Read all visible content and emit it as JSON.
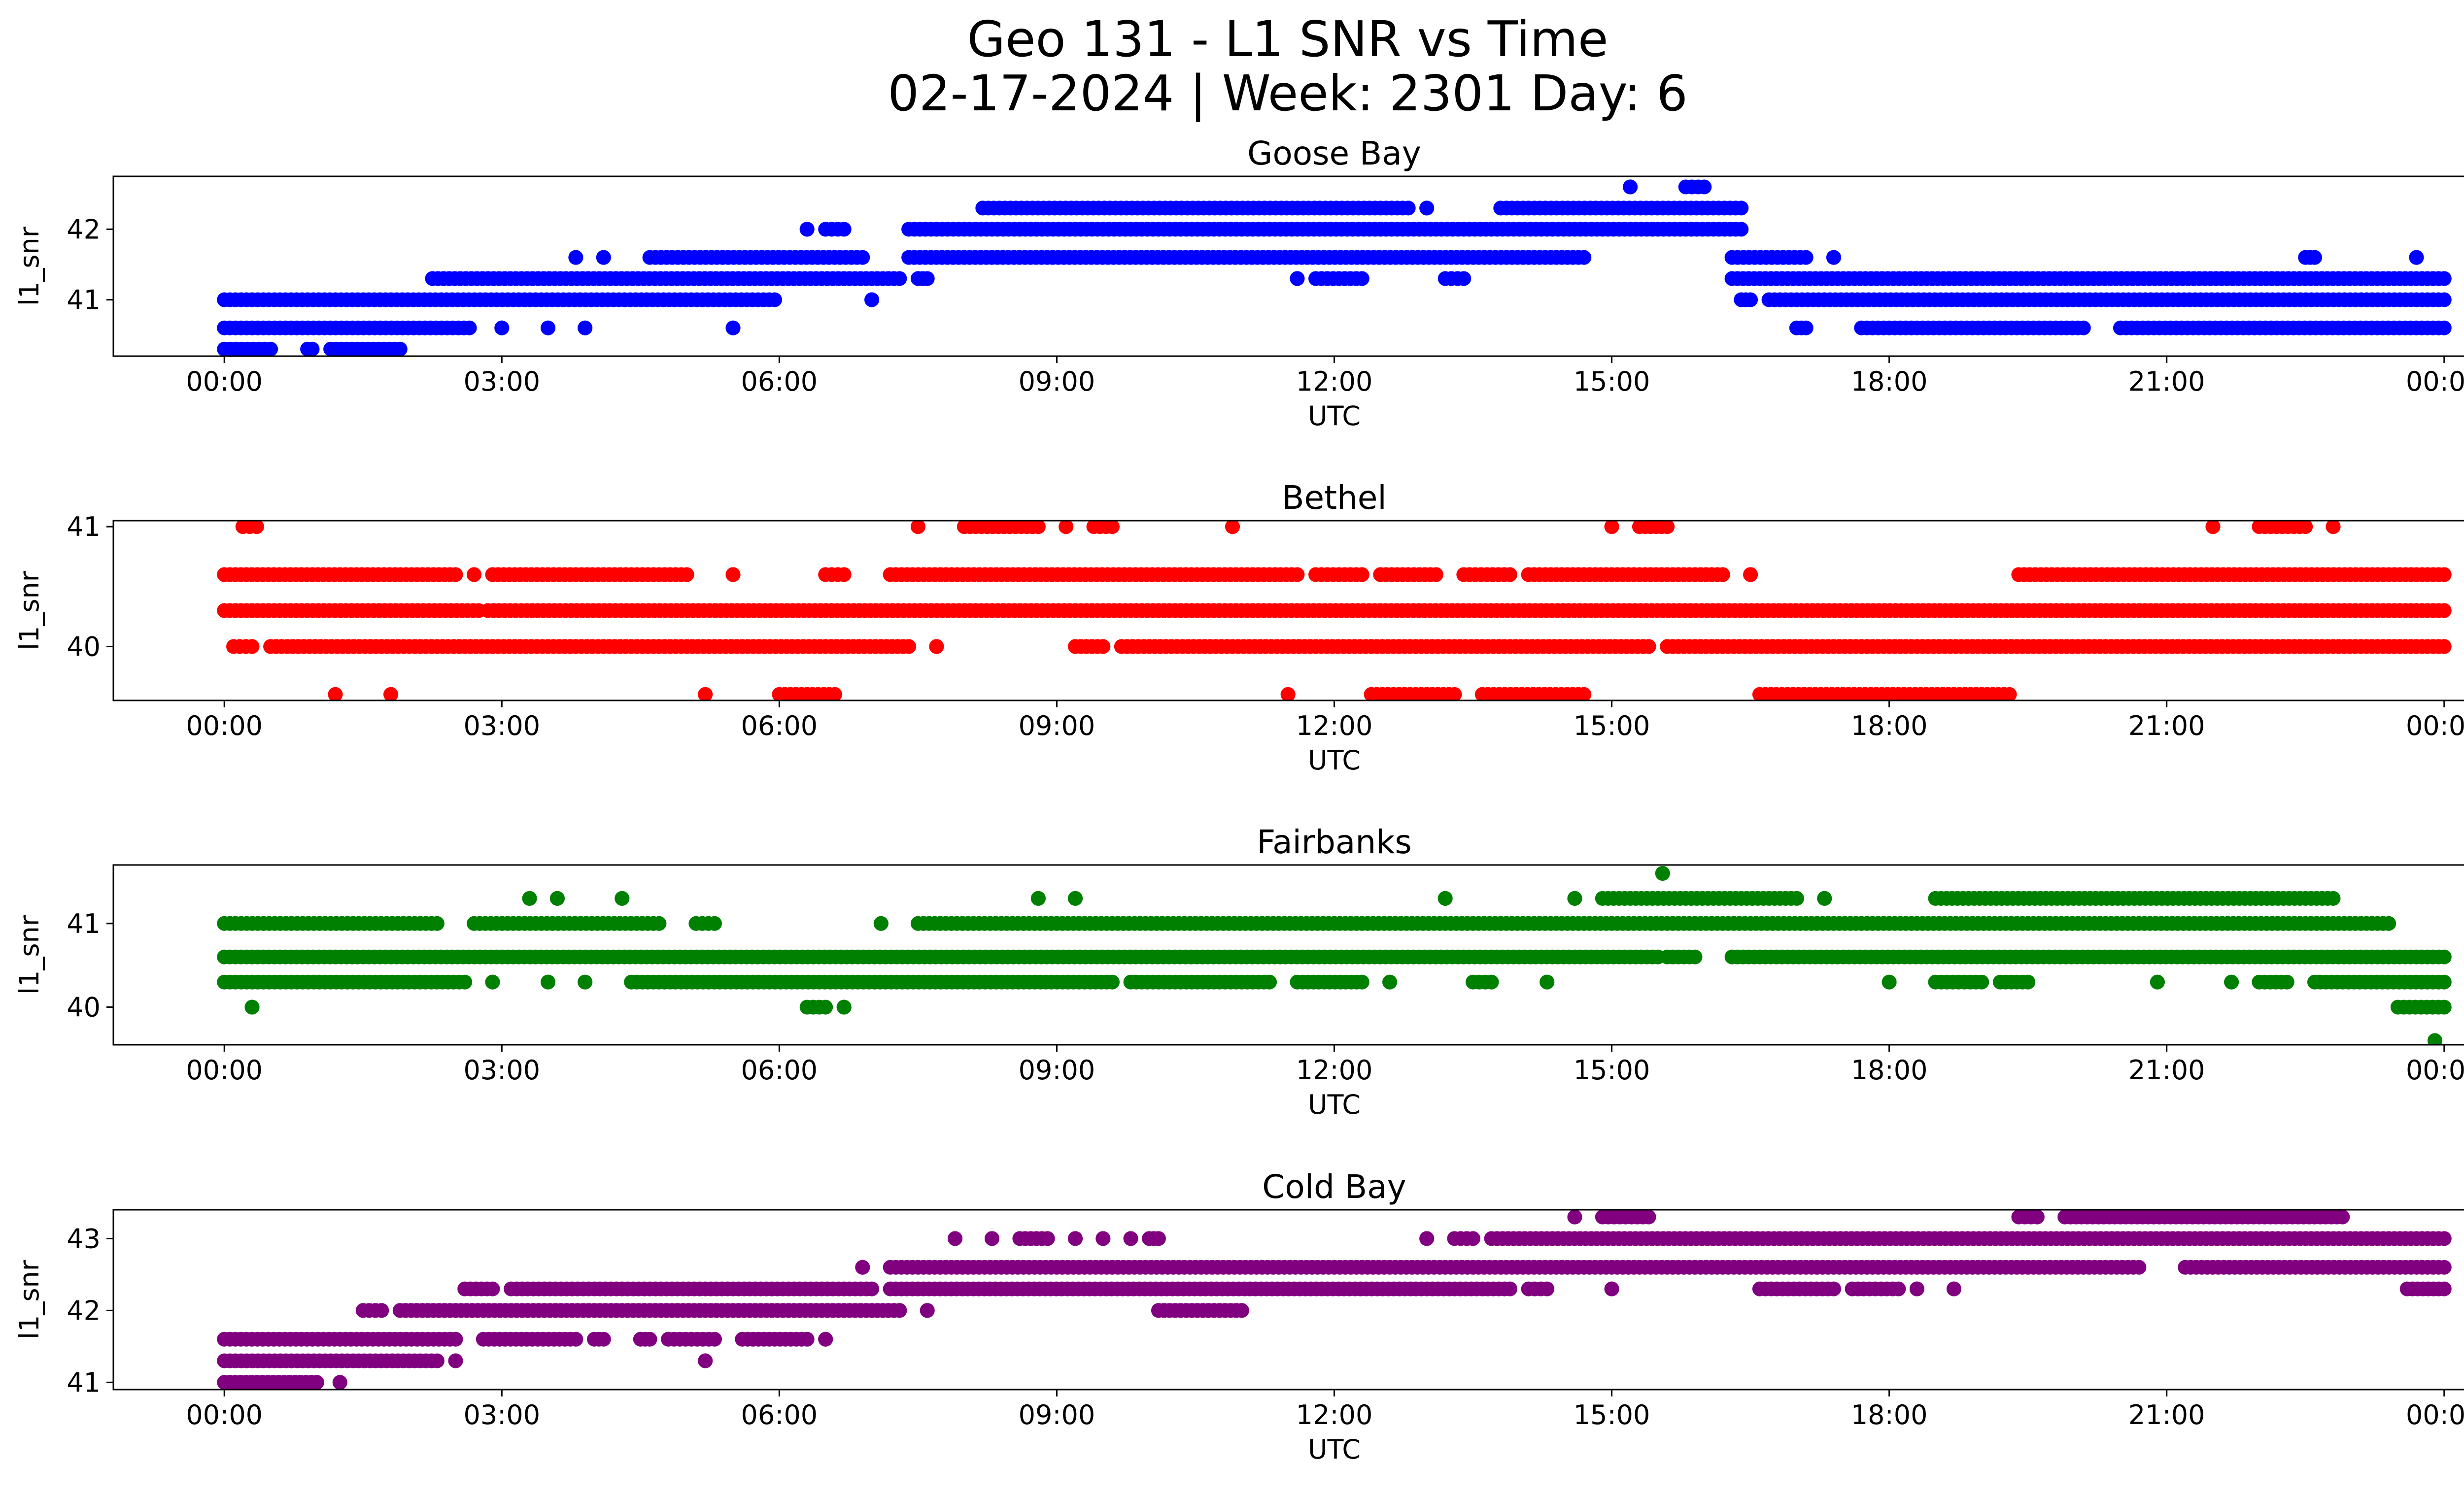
{
  "figure": {
    "title_line1": "Geo 131 - L1 SNR vs Time",
    "title_line2": "02-17-2024 | Week: 2301 Day: 6"
  },
  "chart_data": [
    {
      "type": "scatter",
      "title": "Goose Bay",
      "xlabel": "UTC",
      "ylabel": "l1_snr",
      "color": "#0000ff",
      "x_unit": "hours UTC (0-24)",
      "xlim": [
        -1.2,
        25.2
      ],
      "ylim": [
        40.2,
        42.75
      ],
      "xticks": [
        0,
        3,
        6,
        9,
        12,
        15,
        18,
        21,
        24
      ],
      "xtick_labels": [
        "00:00",
        "03:00",
        "06:00",
        "09:00",
        "12:00",
        "15:00",
        "18:00",
        "21:00",
        "00:00"
      ],
      "yticks": [
        41,
        42
      ],
      "ytick_labels": [
        "41",
        "42"
      ],
      "levels": [
        {
          "value": 40.3,
          "segments": [
            [
              0,
              0.5
            ],
            [
              0.9,
              0.95
            ],
            [
              1.15,
              1.9
            ]
          ]
        },
        {
          "value": 40.6,
          "segments": [
            [
              0,
              2.65
            ],
            [
              3.0,
              3.0
            ],
            [
              3.5,
              3.5
            ],
            [
              3.9,
              3.9
            ],
            [
              5.5,
              5.5
            ],
            [
              17.0,
              17.1
            ],
            [
              17.7,
              20.1
            ],
            [
              20.5,
              24
            ]
          ]
        },
        {
          "value": 41.0,
          "segments": [
            [
              0,
              5.95
            ],
            [
              7.0,
              7.0
            ],
            [
              16.4,
              16.5
            ],
            [
              16.7,
              24
            ]
          ]
        },
        {
          "value": 41.3,
          "segments": [
            [
              2.25,
              7.3
            ],
            [
              7.5,
              7.6
            ],
            [
              11.6,
              11.6
            ],
            [
              11.8,
              12.3
            ],
            [
              13.2,
              13.4
            ],
            [
              16.3,
              24
            ]
          ]
        },
        {
          "value": 41.6,
          "segments": [
            [
              3.8,
              3.8
            ],
            [
              4.1,
              4.1
            ],
            [
              4.6,
              6.9
            ],
            [
              7.4,
              14.7
            ],
            [
              16.3,
              17.1
            ],
            [
              17.4,
              17.4
            ],
            [
              22.5,
              22.6
            ],
            [
              23.7,
              23.7
            ]
          ]
        },
        {
          "value": 42.0,
          "segments": [
            [
              6.3,
              6.3
            ],
            [
              6.5,
              6.7
            ],
            [
              7.4,
              16.4
            ]
          ]
        },
        {
          "value": 42.3,
          "segments": [
            [
              8.2,
              12.8
            ],
            [
              13.0,
              13.0
            ],
            [
              13.8,
              16.4
            ]
          ]
        },
        {
          "value": 42.6,
          "segments": [
            [
              15.2,
              15.2
            ],
            [
              15.8,
              16.0
            ]
          ]
        }
      ]
    },
    {
      "type": "scatter",
      "title": "Bethel",
      "xlabel": "UTC",
      "ylabel": "l1_snr",
      "color": "#ff0000",
      "x_unit": "hours UTC (0-24)",
      "xlim": [
        -1.2,
        25.2
      ],
      "ylim": [
        39.55,
        41.05
      ],
      "xticks": [
        0,
        3,
        6,
        9,
        12,
        15,
        18,
        21,
        24
      ],
      "xtick_labels": [
        "00:00",
        "03:00",
        "06:00",
        "09:00",
        "12:00",
        "15:00",
        "18:00",
        "21:00",
        "00:00"
      ],
      "yticks": [
        40,
        41
      ],
      "ytick_labels": [
        "40",
        "41"
      ],
      "levels": [
        {
          "value": 39.6,
          "segments": [
            [
              1.2,
              1.2
            ],
            [
              1.8,
              1.8
            ],
            [
              5.2,
              5.2
            ],
            [
              6.0,
              6.6
            ],
            [
              11.5,
              11.5
            ],
            [
              12.4,
              13.3
            ],
            [
              13.6,
              14.7
            ],
            [
              16.6,
              19.3
            ]
          ]
        },
        {
          "value": 40.0,
          "segments": [
            [
              0.1,
              0.3
            ],
            [
              0.5,
              7.4
            ],
            [
              7.7,
              7.7
            ],
            [
              9.2,
              9.5
            ],
            [
              9.7,
              15.4
            ],
            [
              15.6,
              24
            ]
          ]
        },
        {
          "value": 40.3,
          "segments": [
            [
              0,
              2.75
            ],
            [
              2.85,
              24
            ]
          ]
        },
        {
          "value": 40.6,
          "segments": [
            [
              0,
              2.5
            ],
            [
              2.7,
              2.7
            ],
            [
              2.9,
              5.0
            ],
            [
              5.5,
              5.5
            ],
            [
              6.5,
              6.7
            ],
            [
              7.2,
              11.6
            ],
            [
              11.8,
              12.3
            ],
            [
              12.5,
              13.1
            ],
            [
              13.4,
              13.9
            ],
            [
              14.1,
              16.2
            ],
            [
              16.5,
              16.5
            ],
            [
              19.4,
              24
            ]
          ]
        },
        {
          "value": 41.0,
          "segments": [
            [
              0.2,
              0.35
            ],
            [
              7.5,
              7.5
            ],
            [
              8.0,
              8.8
            ],
            [
              9.1,
              9.1
            ],
            [
              9.4,
              9.6
            ],
            [
              10.9,
              10.9
            ],
            [
              15.0,
              15.0
            ],
            [
              15.3,
              15.6
            ],
            [
              21.5,
              21.5
            ],
            [
              22.0,
              22.5
            ],
            [
              22.8,
              22.8
            ]
          ]
        }
      ]
    },
    {
      "type": "scatter",
      "title": "Fairbanks",
      "xlabel": "UTC",
      "ylabel": "l1_snr",
      "color": "#008000",
      "x_unit": "hours UTC (0-24)",
      "xlim": [
        -1.2,
        25.2
      ],
      "ylim": [
        39.55,
        41.7
      ],
      "xticks": [
        0,
        3,
        6,
        9,
        12,
        15,
        18,
        21,
        24
      ],
      "xtick_labels": [
        "00:00",
        "03:00",
        "06:00",
        "09:00",
        "12:00",
        "15:00",
        "18:00",
        "21:00",
        "00:00"
      ],
      "yticks": [
        40,
        41
      ],
      "ytick_labels": [
        "40",
        "41"
      ],
      "levels": [
        {
          "value": 39.6,
          "segments": [
            [
              23.9,
              23.9
            ]
          ]
        },
        {
          "value": 40.0,
          "segments": [
            [
              0.3,
              0.3
            ],
            [
              6.3,
              6.5
            ],
            [
              6.7,
              6.7
            ],
            [
              23.5,
              24
            ]
          ]
        },
        {
          "value": 40.3,
          "segments": [
            [
              0,
              2.6
            ],
            [
              2.9,
              2.9
            ],
            [
              3.5,
              3.5
            ],
            [
              3.9,
              3.9
            ],
            [
              4.4,
              9.6
            ],
            [
              9.8,
              11.3
            ],
            [
              11.6,
              12.3
            ],
            [
              12.6,
              12.6
            ],
            [
              13.5,
              13.7
            ],
            [
              14.3,
              14.3
            ],
            [
              18.0,
              18.0
            ],
            [
              18.5,
              19.0
            ],
            [
              19.2,
              19.5
            ],
            [
              20.9,
              20.9
            ],
            [
              21.7,
              21.7
            ],
            [
              22.0,
              22.3
            ],
            [
              22.6,
              24
            ]
          ]
        },
        {
          "value": 40.6,
          "segments": [
            [
              0,
              15.5
            ],
            [
              15.6,
              15.9
            ],
            [
              16.3,
              24
            ]
          ]
        },
        {
          "value": 41.0,
          "segments": [
            [
              0,
              2.3
            ],
            [
              2.7,
              4.7
            ],
            [
              5.1,
              5.3
            ],
            [
              7.1,
              7.1
            ],
            [
              7.5,
              23.4
            ]
          ]
        },
        {
          "value": 41.3,
          "segments": [
            [
              3.3,
              3.3
            ],
            [
              3.6,
              3.6
            ],
            [
              4.3,
              4.3
            ],
            [
              8.8,
              8.8
            ],
            [
              9.2,
              9.2
            ],
            [
              13.2,
              13.2
            ],
            [
              14.6,
              14.6
            ],
            [
              14.9,
              17.0
            ],
            [
              17.3,
              17.3
            ],
            [
              18.5,
              22.8
            ]
          ]
        },
        {
          "value": 41.6,
          "segments": [
            [
              15.55,
              15.55
            ]
          ]
        }
      ]
    },
    {
      "type": "scatter",
      "title": "Cold Bay",
      "xlabel": "UTC",
      "ylabel": "l1_snr",
      "color": "#800080",
      "x_unit": "hours UTC (0-24)",
      "xlim": [
        -1.2,
        25.2
      ],
      "ylim": [
        40.9,
        43.4
      ],
      "xticks": [
        0,
        3,
        6,
        9,
        12,
        15,
        18,
        21,
        24
      ],
      "xtick_labels": [
        "00:00",
        "03:00",
        "06:00",
        "09:00",
        "12:00",
        "15:00",
        "18:00",
        "21:00",
        "00:00"
      ],
      "yticks": [
        41,
        42,
        43
      ],
      "ytick_labels": [
        "41",
        "42",
        "43"
      ],
      "levels": [
        {
          "value": 41.0,
          "segments": [
            [
              0,
              1.0
            ],
            [
              1.25,
              1.25
            ]
          ]
        },
        {
          "value": 41.3,
          "segments": [
            [
              0,
              2.3
            ],
            [
              2.5,
              2.5
            ],
            [
              5.2,
              5.2
            ]
          ]
        },
        {
          "value": 41.6,
          "segments": [
            [
              0,
              2.5
            ],
            [
              2.8,
              3.8
            ],
            [
              4.0,
              4.1
            ],
            [
              4.5,
              4.6
            ],
            [
              4.8,
              5.3
            ],
            [
              5.6,
              6.3
            ],
            [
              6.5,
              6.5
            ]
          ]
        },
        {
          "value": 42.0,
          "segments": [
            [
              1.5,
              1.7
            ],
            [
              1.9,
              7.3
            ],
            [
              7.6,
              7.6
            ],
            [
              10.1,
              11.0
            ]
          ]
        },
        {
          "value": 42.3,
          "segments": [
            [
              2.6,
              2.9
            ],
            [
              3.1,
              7.0
            ],
            [
              7.2,
              13.9
            ],
            [
              14.1,
              14.3
            ],
            [
              15.0,
              15.0
            ],
            [
              16.6,
              17.4
            ],
            [
              17.6,
              18.1
            ],
            [
              18.3,
              18.3
            ],
            [
              18.7,
              18.7
            ],
            [
              23.6,
              24
            ]
          ]
        },
        {
          "value": 42.6,
          "segments": [
            [
              6.9,
              6.9
            ],
            [
              7.2,
              20.7
            ],
            [
              21.2,
              24
            ]
          ]
        },
        {
          "value": 43.0,
          "segments": [
            [
              7.9,
              7.9
            ],
            [
              8.3,
              8.3
            ],
            [
              8.6,
              8.9
            ],
            [
              9.2,
              9.2
            ],
            [
              9.5,
              9.5
            ],
            [
              9.8,
              9.8
            ],
            [
              10.0,
              10.1
            ],
            [
              13.0,
              13.0
            ],
            [
              13.3,
              13.5
            ],
            [
              13.7,
              24
            ]
          ]
        },
        {
          "value": 43.3,
          "segments": [
            [
              14.6,
              14.6
            ],
            [
              14.9,
              15.4
            ],
            [
              19.4,
              19.6
            ],
            [
              19.9,
              22.9
            ]
          ]
        }
      ]
    }
  ]
}
